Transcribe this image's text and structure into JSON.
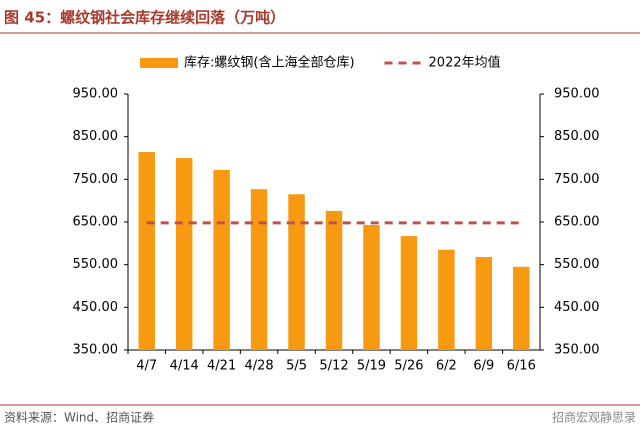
{
  "chart_data": {
    "type": "bar",
    "title": "图 45：螺纹钢社会库存继续回落（万吨）",
    "categories": [
      "4/7",
      "4/14",
      "4/21",
      "4/28",
      "5/5",
      "5/12",
      "5/19",
      "5/26",
      "6/2",
      "6/9",
      "6/16"
    ],
    "series": [
      {
        "name": "库存:螺纹钢(含上海全部仓库)",
        "type": "bar",
        "color": "#f79a12",
        "values": [
          814,
          800,
          772,
          727,
          715,
          676,
          643,
          617,
          585,
          568,
          545
        ]
      },
      {
        "name": "2022年均值",
        "type": "line",
        "color": "#c0504d",
        "dashed": true,
        "values": [
          648,
          648,
          648,
          648,
          648,
          648,
          648,
          648,
          648,
          648,
          648
        ]
      }
    ],
    "ylim": [
      350,
      950
    ],
    "yticks": [
      {
        "value": 350,
        "label": "350.00"
      },
      {
        "value": 450,
        "label": "450.00"
      },
      {
        "value": 550,
        "label": "550.00"
      },
      {
        "value": 650,
        "label": "650.00"
      },
      {
        "value": 750,
        "label": "750.00"
      },
      {
        "value": 850,
        "label": "850.00"
      },
      {
        "value": 950,
        "label": "950.00"
      }
    ],
    "y2lim": [
      350,
      950
    ],
    "y2ticks": [
      {
        "value": 350,
        "label": "350.00"
      },
      {
        "value": 450,
        "label": "450.00"
      },
      {
        "value": 550,
        "label": "550.00"
      },
      {
        "value": 650,
        "label": "650.00"
      },
      {
        "value": 750,
        "label": "750.00"
      },
      {
        "value": 850,
        "label": "850.00"
      },
      {
        "value": 950,
        "label": "950.00"
      }
    ],
    "grid": false,
    "legend": "top",
    "source": "资料来源：Wind、招商证券",
    "watermark": "招商宏观静思录"
  }
}
